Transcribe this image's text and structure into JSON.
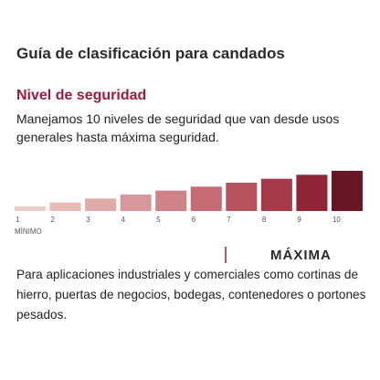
{
  "header": {
    "title": "Guía de clasificación para candados"
  },
  "section": {
    "title": "Nivel de seguridad",
    "description": "Manejamos 10 niveles de seguridad que van desde usos generales hasta máxima seguridad."
  },
  "scale": {
    "levels": [
      {
        "label": "1",
        "color": "#ecccc8"
      },
      {
        "label": "2",
        "color": "#e6bbb8"
      },
      {
        "label": "3",
        "color": "#e0aaa9"
      },
      {
        "label": "4",
        "color": "#d8979a"
      },
      {
        "label": "5",
        "color": "#cf8288"
      },
      {
        "label": "6",
        "color": "#c46b74"
      },
      {
        "label": "7",
        "color": "#b7535f"
      },
      {
        "label": "8",
        "color": "#a63a4a"
      },
      {
        "label": "9",
        "color": "#922437"
      },
      {
        "label": "10",
        "color": "#6a1526"
      }
    ],
    "min_label": "MÍNIMO",
    "max_label": "MÁXIMA"
  },
  "footer": {
    "description": "Para aplicaciones industriales y comerciales como cortinas de hierro, puertas de negocios, bodegas, contenedores o portones pesados."
  }
}
